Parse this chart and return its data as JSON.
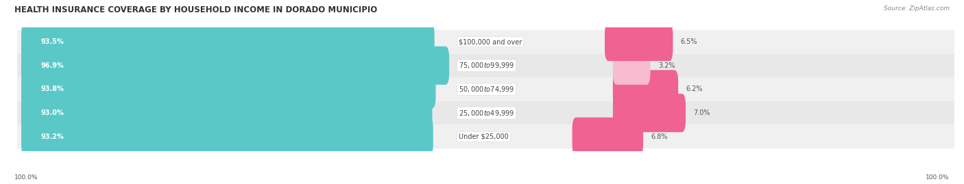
{
  "title": "HEALTH INSURANCE COVERAGE BY HOUSEHOLD INCOME IN DORADO MUNICIPIO",
  "source": "Source: ZipAtlas.com",
  "categories": [
    "Under $25,000",
    "$25,000 to $49,999",
    "$50,000 to $74,999",
    "$75,000 to $99,999",
    "$100,000 and over"
  ],
  "with_coverage": [
    93.2,
    93.0,
    93.8,
    96.9,
    93.5
  ],
  "without_coverage": [
    6.8,
    7.0,
    6.2,
    3.2,
    6.5
  ],
  "coverage_color": "#5BC8C8",
  "no_coverage_color_normal": "#F48FB1",
  "no_coverage_color_bright": "#F06292",
  "bar_bg_color": "#F0F0F0",
  "row_bg_colors": [
    "#F0F0F0",
    "#E8E8E8"
  ],
  "title_fontsize": 8.5,
  "label_fontsize": 7.0,
  "pct_fontsize": 7.0,
  "source_fontsize": 6.5,
  "legend_fontsize": 7.0,
  "bar_height": 0.62,
  "background_color": "#FFFFFF",
  "axis_left_label": "100.0%",
  "axis_right_label": "100.0%",
  "teal_dark": "#3AABAB",
  "pink_colors": [
    "#F06292",
    "#F06292",
    "#F06292",
    "#F8BBD0",
    "#F06292"
  ]
}
